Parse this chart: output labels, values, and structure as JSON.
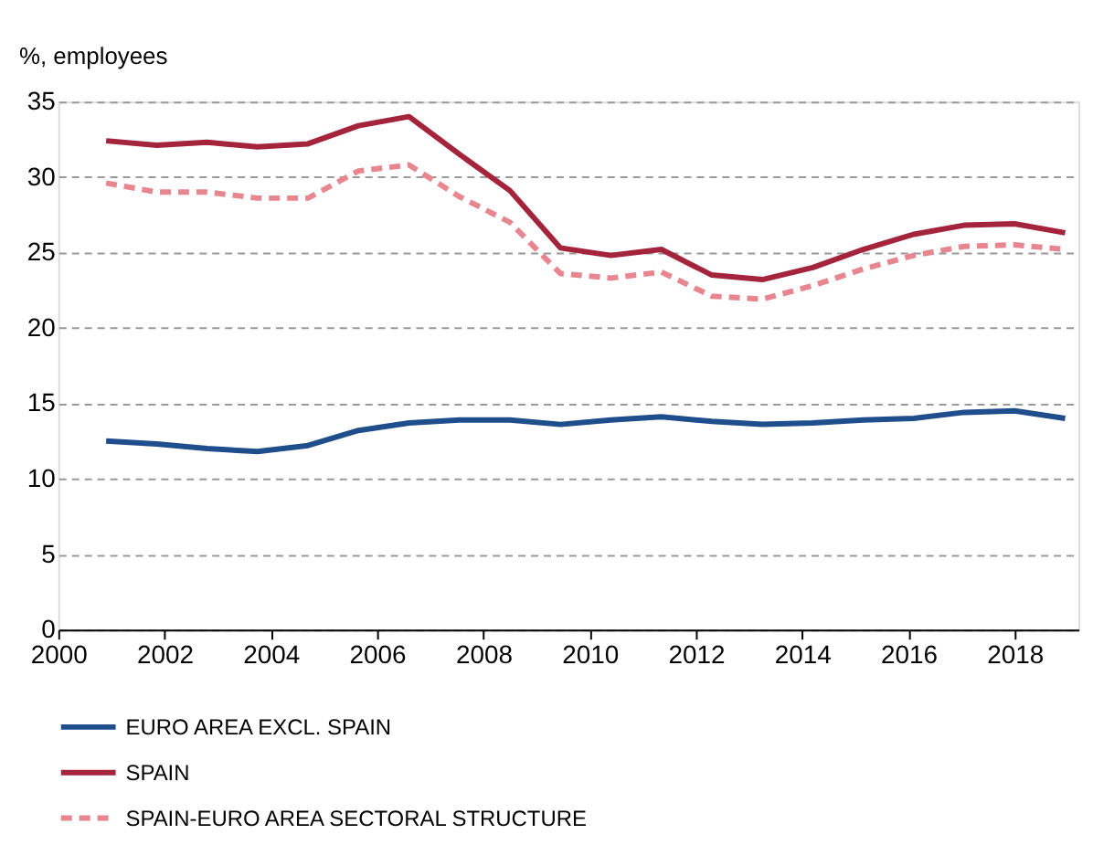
{
  "chart_data": {
    "type": "line",
    "ylabel": "%, employees",
    "xlim": [
      2000,
      2019.2
    ],
    "xticks": [
      2000,
      2002,
      2004,
      2006,
      2008,
      2010,
      2012,
      2014,
      2016,
      2018
    ],
    "ylim": [
      0,
      35
    ],
    "yticks": [
      0,
      5,
      10,
      15,
      20,
      25,
      30,
      35
    ],
    "grid": "y",
    "legend": "bottom",
    "marker": "none",
    "x": [
      2000.9,
      2001.85,
      2002.8,
      2003.75,
      2004.7,
      2005.65,
      2006.6,
      2007.55,
      2008.5,
      2009.45,
      2010.4,
      2011.35,
      2012.3,
      2013.25,
      2014.2,
      2015.15,
      2016.1,
      2017.05,
      2018.0,
      2018.95
    ],
    "series": [
      {
        "name": "EURO AREA EXCL. SPAIN",
        "color": "#1f4e8c",
        "line_style": "solid",
        "values": [
          12.5,
          12.3,
          12.0,
          11.8,
          12.2,
          13.2,
          13.7,
          13.9,
          13.9,
          13.6,
          13.9,
          14.1,
          13.8,
          13.6,
          13.7,
          13.9,
          14.0,
          14.4,
          14.5,
          14.0
        ]
      },
      {
        "name": "SPAIN",
        "color": "#a3243b",
        "line_style": "solid",
        "values": [
          32.4,
          32.1,
          32.3,
          32.0,
          32.2,
          33.4,
          34.0,
          31.5,
          29.1,
          25.3,
          24.8,
          25.2,
          23.5,
          23.2,
          24.0,
          25.2,
          26.2,
          26.8,
          26.9,
          26.3
        ]
      },
      {
        "name": "SPAIN-EURO AREA SECTORAL STRUCTURE",
        "color": "#e8868f",
        "line_style": "dashed",
        "values": [
          29.6,
          29.0,
          29.0,
          28.6,
          28.6,
          30.4,
          30.8,
          28.7,
          27.0,
          23.6,
          23.3,
          23.7,
          22.1,
          21.9,
          22.8,
          23.9,
          24.8,
          25.4,
          25.5,
          25.2
        ]
      }
    ]
  }
}
